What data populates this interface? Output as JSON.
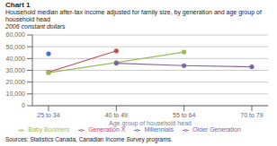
{
  "chart_data": {
    "type": "line",
    "title": "Chart 1",
    "subtitle": "Household median after-tax income adjusted for family size, by generation and age group of household head",
    "annotations": [
      "2006 constant dollars",
      "Sources: Statistics Canada, Canadian Income Survey programs."
    ],
    "xlabel": "Age group of household head",
    "categories": [
      "25 to 34",
      "40 to 49",
      "55 to 64",
      "70 to 79"
    ],
    "series": [
      {
        "name": "Millennials",
        "color": "#4472C4",
        "marker": "circle",
        "values": [
          44000,
          null,
          null,
          null
        ]
      },
      {
        "name": "Generation X",
        "color": "#C0504D",
        "marker": "circle",
        "values": [
          28500,
          46500,
          null,
          null
        ]
      },
      {
        "name": "Baby Boomers",
        "color": "#9BBB59",
        "marker": "circle",
        "values": [
          28000,
          36500,
          45500,
          null
        ]
      },
      {
        "name": "Older Generation",
        "color": "#8064A2",
        "marker": "circle",
        "values": [
          null,
          36000,
          34000,
          33000
        ]
      }
    ],
    "ylim": [
      0,
      60000
    ],
    "yticks": [
      0,
      {
        "value": 10000,
        "label": "10,000"
      },
      {
        "value": 20000,
        "label": "20,000"
      },
      {
        "value": 30000,
        "label": "30,000"
      },
      {
        "value": 40000,
        "label": "40,000"
      },
      {
        "value": 50000,
        "label": "50,000"
      },
      {
        "value": 60000,
        "label": "60,000"
      }
    ],
    "grid": true,
    "legend": "bottom"
  }
}
